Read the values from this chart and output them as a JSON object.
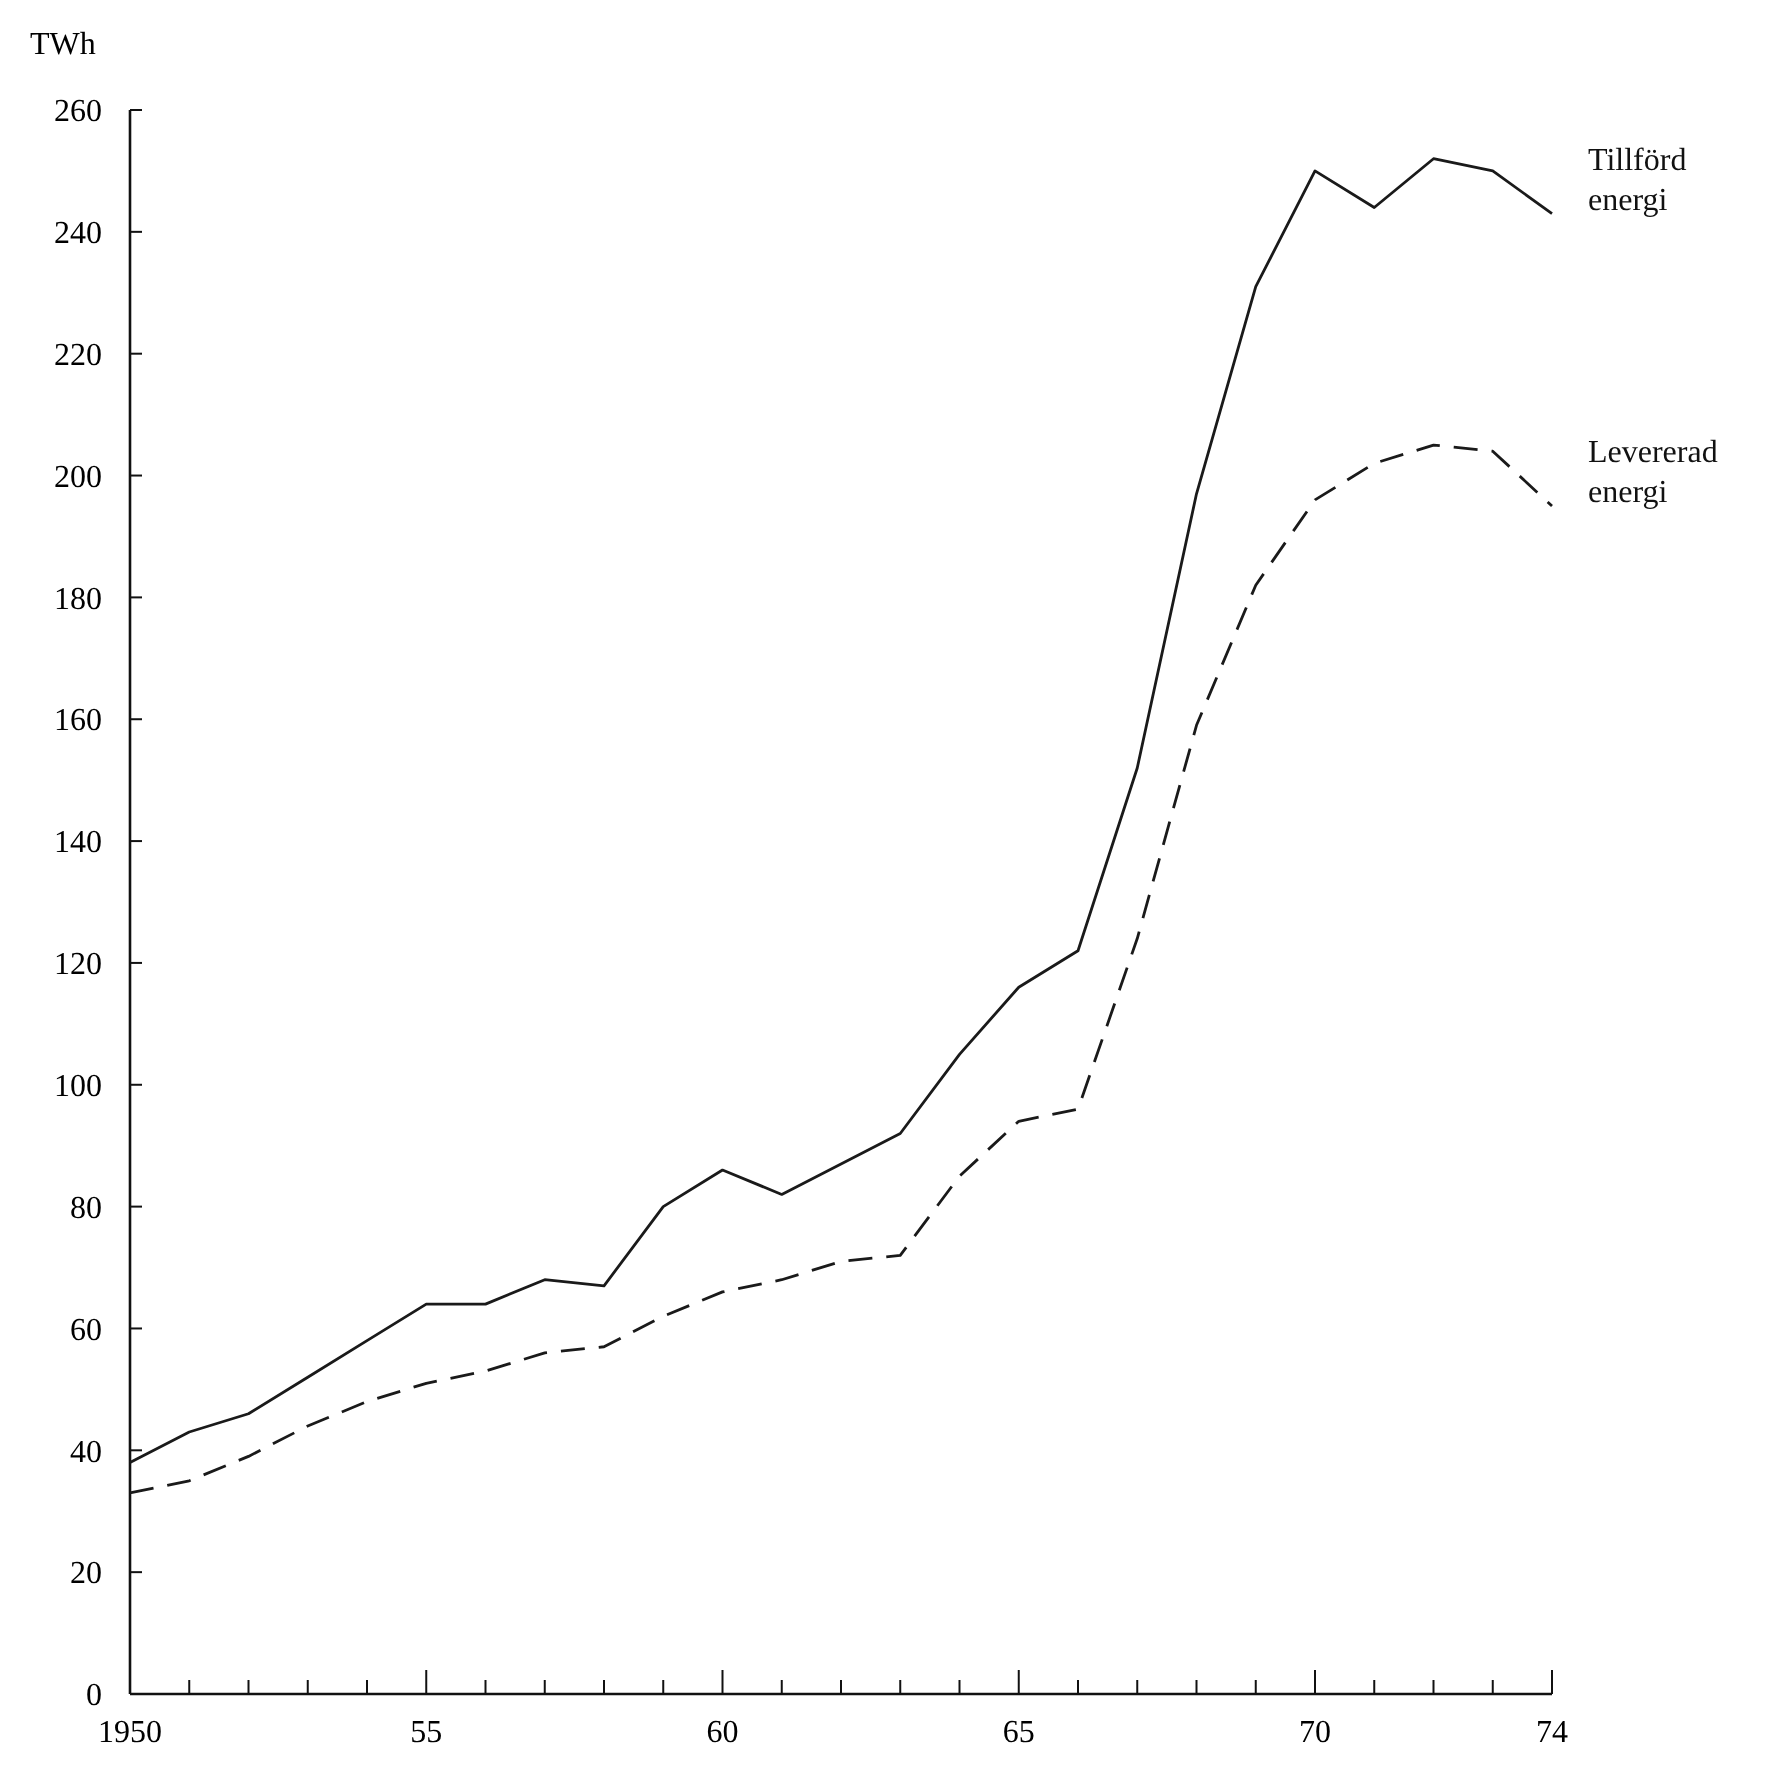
{
  "chart_data": {
    "type": "line",
    "ylabel": "TWh",
    "x": [
      1950,
      1951,
      1952,
      1953,
      1954,
      1955,
      1956,
      1957,
      1958,
      1959,
      1960,
      1961,
      1962,
      1963,
      1964,
      1965,
      1966,
      1967,
      1968,
      1969,
      1970,
      1971,
      1972,
      1973,
      1974
    ],
    "series": [
      {
        "name": "Tillförd energi",
        "color": "#1a1a1a",
        "line_style": "solid",
        "values": [
          38,
          43,
          46,
          52,
          58,
          64,
          64,
          68,
          67,
          80,
          86,
          82,
          87,
          92,
          105,
          116,
          122,
          152,
          197,
          231,
          250,
          244,
          252,
          250,
          243
        ]
      },
      {
        "name": "Levererad energi",
        "color": "#1a1a1a",
        "line_style": "dashed",
        "values": [
          33,
          35,
          39,
          44,
          48,
          51,
          53,
          56,
          57,
          62,
          66,
          68,
          71,
          72,
          85,
          94,
          96,
          124,
          159,
          182,
          196,
          202,
          205,
          204,
          195
        ]
      }
    ],
    "xlim": [
      1950,
      1974
    ],
    "xticks": [
      {
        "value": 1950,
        "label": "1950"
      },
      {
        "value": 1951,
        "label": null
      },
      {
        "value": 1952,
        "label": null
      },
      {
        "value": 1953,
        "label": null
      },
      {
        "value": 1954,
        "label": null
      },
      {
        "value": 1955,
        "label": "55"
      },
      {
        "value": 1956,
        "label": null
      },
      {
        "value": 1957,
        "label": null
      },
      {
        "value": 1958,
        "label": null
      },
      {
        "value": 1959,
        "label": null
      },
      {
        "value": 1960,
        "label": "60"
      },
      {
        "value": 1961,
        "label": null
      },
      {
        "value": 1962,
        "label": null
      },
      {
        "value": 1963,
        "label": null
      },
      {
        "value": 1964,
        "label": null
      },
      {
        "value": 1965,
        "label": "65"
      },
      {
        "value": 1966,
        "label": null
      },
      {
        "value": 1967,
        "label": null
      },
      {
        "value": 1968,
        "label": null
      },
      {
        "value": 1969,
        "label": null
      },
      {
        "value": 1970,
        "label": "70"
      },
      {
        "value": 1971,
        "label": null
      },
      {
        "value": 1972,
        "label": null
      },
      {
        "value": 1973,
        "label": null
      },
      {
        "value": 1974,
        "label": "74"
      }
    ],
    "ylim": [
      0,
      260
    ],
    "yticks": [
      0,
      20,
      40,
      60,
      80,
      100,
      120,
      140,
      160,
      180,
      200,
      220,
      240,
      260
    ],
    "grid": false,
    "legend": false,
    "marker": "none"
  }
}
